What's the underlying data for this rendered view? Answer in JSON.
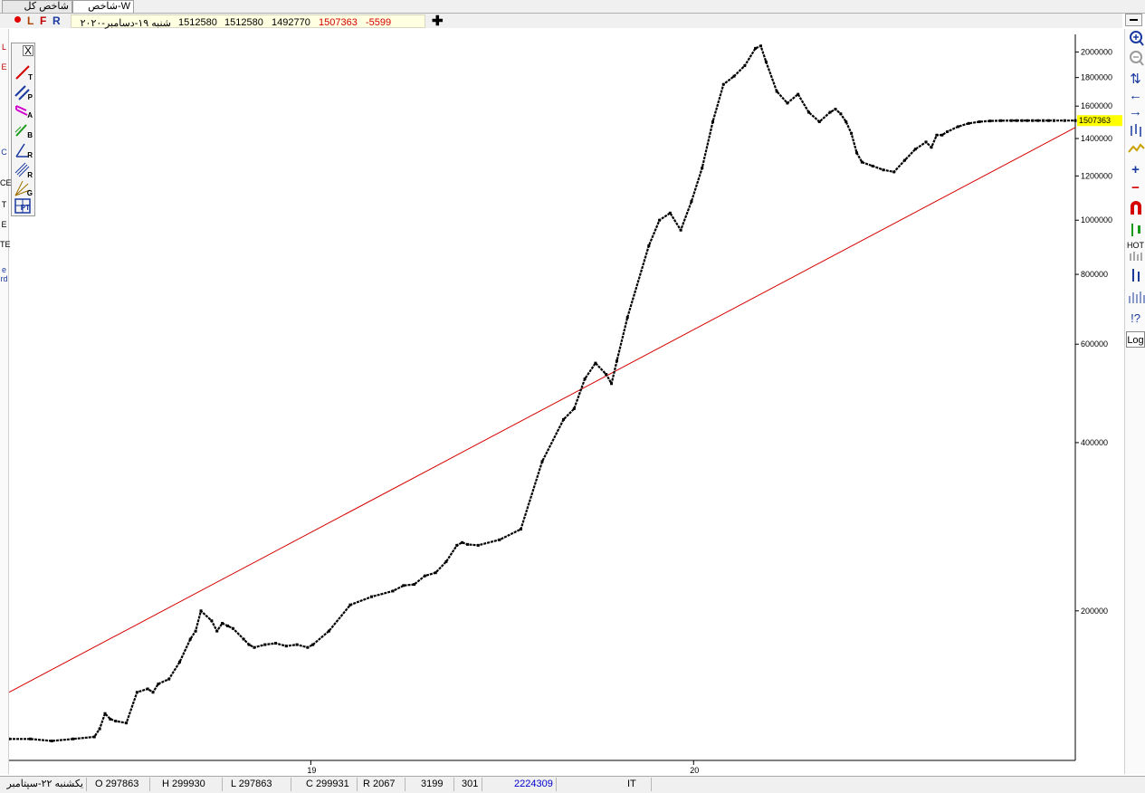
{
  "tabs": [
    {
      "label": "شاخص کل",
      "active": false
    },
    {
      "label": "W-شاخص",
      "active": true
    }
  ],
  "tab_suffix": "W-",
  "info_bar": {
    "letters": [
      "L",
      "F",
      "R"
    ],
    "date": "شنبه ۱۹-دسامبر-۲۰۲۰",
    "open": "1512580",
    "high": "1512580",
    "low": "1492770",
    "close": "1507363",
    "change": "-5599",
    "add_symbol": "✚"
  },
  "toolbox": {
    "close_label": "X",
    "tools": [
      {
        "icon": "trend-line-icon",
        "sub": "T"
      },
      {
        "icon": "parallel-lines-icon",
        "sub": "P"
      },
      {
        "icon": "andrews-pitchfork-icon",
        "sub": "A"
      },
      {
        "icon": "brush-icon",
        "sub": "B"
      },
      {
        "icon": "regression-icon",
        "sub": "R"
      },
      {
        "icon": "raff-channel-icon",
        "sub": "R"
      },
      {
        "icon": "gann-fan-icon",
        "sub": "G"
      },
      {
        "icon": "grid-tool-icon",
        "sub": "PT"
      }
    ]
  },
  "left_strip_glyphs": [
    "L",
    "E",
    "C",
    "T",
    "CE",
    "E",
    "TE",
    "e",
    "rd"
  ],
  "right_toolbar": {
    "items": [
      "zoom-in-icon",
      "zoom-out-icon",
      "arrows-up-down-icon",
      "arrow-left-icon",
      "arrow-right-icon",
      "bar-chart-icon",
      "line-chart-icon",
      "plus-icon",
      "minus-icon",
      "magnet-icon",
      "candle-icon",
      "hot-icon",
      "hot-bars-icon",
      "volume-icon",
      "volume-bars-icon",
      "help-icon"
    ],
    "hot_label": "HOT",
    "log_label": "Log"
  },
  "status_bar": {
    "date": "یکشنبه ۲۲-سپتامبر",
    "open": "O 297863",
    "high": "H 299930",
    "low": "L 297863",
    "close": "C 299931",
    "range": "R 2067",
    "count": "3199",
    "bars": "301",
    "volume": "2224309",
    "symbol": "IT"
  },
  "colors": {
    "price": "#000000",
    "trendline": "#d40000",
    "last_price_bg": "#ffff00",
    "info_red": "#d40000",
    "info_blue": "#1a3aa0",
    "volume_blue": "#0000cc"
  },
  "chart_data": {
    "type": "line",
    "scale": "log",
    "ylim": [
      108000,
      2150000
    ],
    "y_ticks": [
      200000,
      400000,
      600000,
      800000,
      1000000,
      1200000,
      1400000,
      1600000,
      1800000,
      2000000
    ],
    "y_tick_labels": [
      "200000",
      "400000",
      "600000",
      "800000",
      "1000000",
      "1200000",
      "1400000",
      "1600000",
      "1800000",
      "2000000"
    ],
    "x_labels": [
      {
        "label": "19",
        "x": 0.283
      },
      {
        "label": "20",
        "x": 0.642
      }
    ],
    "last_price_label": "1507363",
    "last_price": 1507363,
    "series": [
      {
        "x": [
          0,
          0.02,
          0.04,
          0.06,
          0.08,
          0.085,
          0.09,
          0.095,
          0.1,
          0.11,
          0.12,
          0.13,
          0.135,
          0.14,
          0.15,
          0.16,
          0.17,
          0.175,
          0.18,
          0.19,
          0.195,
          0.2,
          0.205,
          0.21,
          0.22,
          0.225,
          0.23,
          0.24,
          0.25,
          0.26,
          0.27,
          0.28,
          0.285,
          0.3,
          0.32,
          0.34,
          0.36,
          0.37,
          0.38,
          0.39,
          0.4,
          0.41,
          0.42,
          0.425,
          0.43,
          0.44,
          0.46,
          0.48,
          0.5,
          0.52,
          0.53,
          0.54,
          0.55,
          0.56,
          0.565,
          0.57,
          0.58,
          0.6,
          0.61,
          0.62,
          0.63,
          0.64,
          0.65,
          0.66,
          0.67,
          0.68,
          0.69,
          0.7,
          0.705,
          0.71,
          0.72,
          0.73,
          0.74,
          0.75,
          0.76,
          0.77,
          0.775,
          0.78,
          0.785,
          0.79,
          0.795,
          0.8,
          0.81,
          0.82,
          0.83,
          0.84,
          0.85,
          0.86,
          0.865,
          0.87,
          0.875,
          0.88,
          0.89,
          0.9,
          0.91,
          0.92,
          0.93,
          0.94,
          0.945,
          0.95,
          0.955,
          0.96,
          0.965,
          0.97,
          0.975,
          0.98,
          0.99,
          1.0
        ],
        "y": [
          118000,
          118000,
          117000,
          118000,
          119000,
          123000,
          131000,
          128000,
          127000,
          126000,
          143000,
          145000,
          143000,
          148000,
          151000,
          162000,
          178000,
          184000,
          200000,
          192000,
          184000,
          190000,
          188000,
          186000,
          178000,
          174000,
          172000,
          174000,
          175000,
          173000,
          174000,
          172000,
          174000,
          184000,
          205000,
          212000,
          217000,
          222000,
          223000,
          231000,
          234000,
          245000,
          262000,
          265000,
          263000,
          262000,
          268000,
          280000,
          370000,
          440000,
          460000,
          520000,
          555000,
          530000,
          510000,
          560000,
          670000,
          900000,
          1000000,
          1030000,
          960000,
          1080000,
          1240000,
          1500000,
          1750000,
          1810000,
          1890000,
          2030000,
          2050000,
          1920000,
          1700000,
          1620000,
          1680000,
          1560000,
          1500000,
          1560000,
          1580000,
          1550000,
          1500000,
          1430000,
          1320000,
          1270000,
          1250000,
          1230000,
          1220000,
          1280000,
          1340000,
          1380000,
          1350000,
          1420000,
          1420000,
          1440000,
          1470000,
          1490000,
          1500000,
          1505000,
          1507000,
          1507363,
          1507363,
          1507363,
          1507363,
          1507363,
          1507363,
          1507363,
          1507363,
          1507363,
          1507363,
          1507363
        ]
      }
    ],
    "trendline": {
      "x": [
        0,
        1
      ],
      "y": [
        143000,
        1465000
      ]
    }
  }
}
